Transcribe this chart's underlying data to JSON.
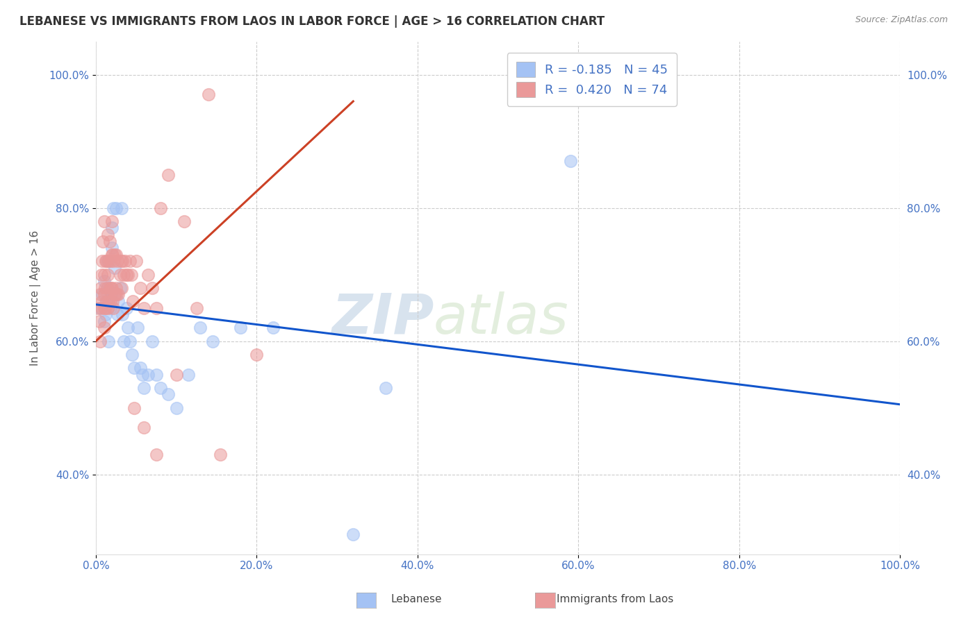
{
  "title": "LEBANESE VS IMMIGRANTS FROM LAOS IN LABOR FORCE | AGE > 16 CORRELATION CHART",
  "source": "Source: ZipAtlas.com",
  "ylabel": "In Labor Force | Age > 16",
  "xlim": [
    0.0,
    1.0
  ],
  "ylim": [
    0.28,
    1.05
  ],
  "x_ticks": [
    0.0,
    0.2,
    0.4,
    0.6,
    0.8,
    1.0
  ],
  "x_tick_labels": [
    "0.0%",
    "20.0%",
    "40.0%",
    "60.0%",
    "80.0%",
    "100.0%"
  ],
  "y_ticks": [
    0.4,
    0.6,
    0.8,
    1.0
  ],
  "y_tick_labels": [
    "40.0%",
    "60.0%",
    "80.0%",
    "100.0%"
  ],
  "legend_blue_label": "R = -0.185   N = 45",
  "legend_pink_label": "R =  0.420   N = 74",
  "blue_color": "#a4c2f4",
  "pink_color": "#ea9999",
  "blue_line_color": "#1155cc",
  "pink_line_color": "#cc4125",
  "watermark_zip": "ZIP",
  "watermark_atlas": "atlas",
  "blue_scatter_x": [
    0.005,
    0.008,
    0.01,
    0.01,
    0.012,
    0.013,
    0.015,
    0.015,
    0.016,
    0.018,
    0.019,
    0.02,
    0.02,
    0.022,
    0.023,
    0.025,
    0.027,
    0.028,
    0.03,
    0.032,
    0.033,
    0.035,
    0.038,
    0.04,
    0.042,
    0.045,
    0.048,
    0.052,
    0.055,
    0.058,
    0.06,
    0.065,
    0.07,
    0.075,
    0.08,
    0.09,
    0.1,
    0.115,
    0.13,
    0.145,
    0.18,
    0.22,
    0.32,
    0.59,
    0.36
  ],
  "blue_scatter_y": [
    0.65,
    0.67,
    0.63,
    0.69,
    0.64,
    0.66,
    0.68,
    0.72,
    0.6,
    0.65,
    0.67,
    0.74,
    0.77,
    0.8,
    0.71,
    0.8,
    0.64,
    0.66,
    0.68,
    0.8,
    0.64,
    0.6,
    0.65,
    0.62,
    0.6,
    0.58,
    0.56,
    0.62,
    0.56,
    0.55,
    0.53,
    0.55,
    0.6,
    0.55,
    0.53,
    0.52,
    0.5,
    0.55,
    0.62,
    0.6,
    0.62,
    0.62,
    0.31,
    0.87,
    0.53
  ],
  "pink_scatter_x": [
    0.003,
    0.004,
    0.005,
    0.005,
    0.006,
    0.007,
    0.007,
    0.008,
    0.008,
    0.009,
    0.01,
    0.01,
    0.01,
    0.01,
    0.01,
    0.011,
    0.012,
    0.012,
    0.013,
    0.013,
    0.014,
    0.015,
    0.015,
    0.015,
    0.016,
    0.016,
    0.017,
    0.017,
    0.018,
    0.018,
    0.019,
    0.02,
    0.02,
    0.02,
    0.021,
    0.021,
    0.022,
    0.022,
    0.023,
    0.023,
    0.024,
    0.025,
    0.025,
    0.026,
    0.027,
    0.028,
    0.03,
    0.031,
    0.032,
    0.033,
    0.035,
    0.036,
    0.038,
    0.04,
    0.042,
    0.044,
    0.046,
    0.048,
    0.05,
    0.055,
    0.06,
    0.065,
    0.07,
    0.075,
    0.08,
    0.09,
    0.1,
    0.11,
    0.125,
    0.14,
    0.06,
    0.075,
    0.155,
    0.2
  ],
  "pink_scatter_y": [
    0.65,
    0.63,
    0.6,
    0.67,
    0.68,
    0.65,
    0.7,
    0.66,
    0.72,
    0.75,
    0.62,
    0.65,
    0.67,
    0.7,
    0.78,
    0.68,
    0.65,
    0.72,
    0.66,
    0.72,
    0.68,
    0.65,
    0.7,
    0.76,
    0.66,
    0.72,
    0.68,
    0.75,
    0.66,
    0.72,
    0.68,
    0.68,
    0.73,
    0.78,
    0.66,
    0.73,
    0.65,
    0.72,
    0.67,
    0.73,
    0.67,
    0.68,
    0.73,
    0.67,
    0.72,
    0.67,
    0.7,
    0.72,
    0.68,
    0.72,
    0.7,
    0.72,
    0.7,
    0.7,
    0.72,
    0.7,
    0.66,
    0.5,
    0.72,
    0.68,
    0.65,
    0.7,
    0.68,
    0.65,
    0.8,
    0.85,
    0.55,
    0.78,
    0.65,
    0.97,
    0.47,
    0.43,
    0.43,
    0.58
  ],
  "blue_trendline_x0": 0.0,
  "blue_trendline_x1": 1.0,
  "blue_trendline_y0": 0.655,
  "blue_trendline_y1": 0.505,
  "pink_trendline_x0": 0.0,
  "pink_trendline_x1": 0.32,
  "pink_trendline_y0": 0.6,
  "pink_trendline_y1": 0.96
}
